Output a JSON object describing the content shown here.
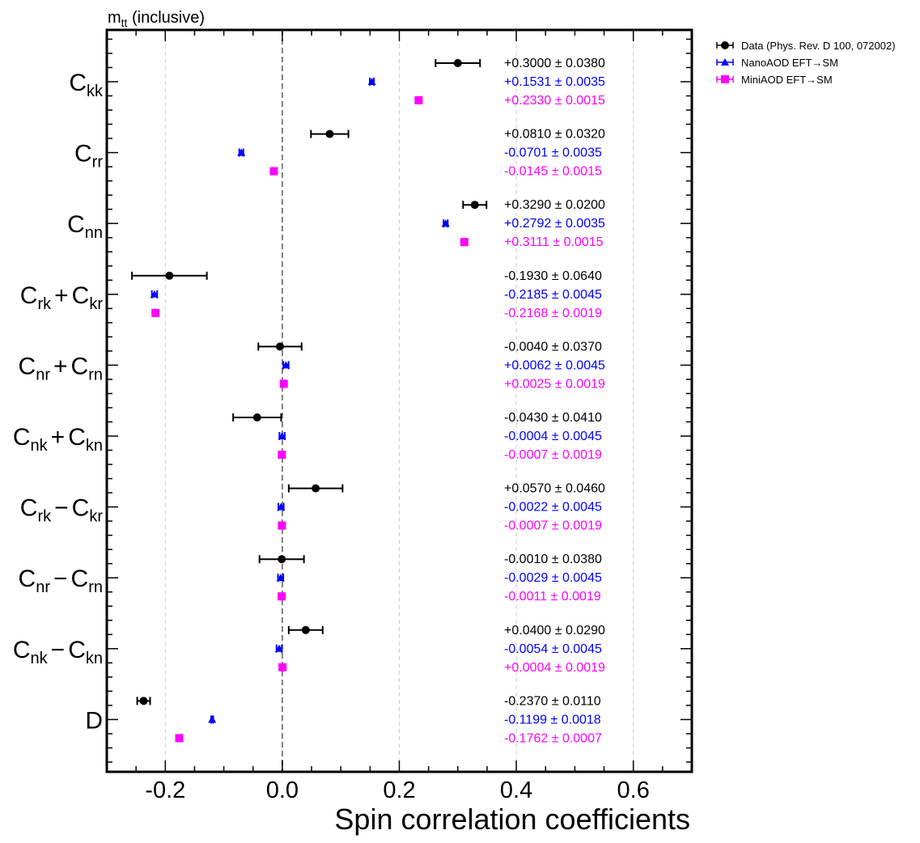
{
  "chart_data": {
    "type": "scatter",
    "title": "m_tt (inclusive)",
    "title_main": "m",
    "title_sub": "tt",
    "title_rest": " (inclusive)",
    "xlabel": "Spin correlation coefficients",
    "ylabel": "",
    "xlim": [
      -0.3,
      0.7
    ],
    "xticks": [
      -0.2,
      0.0,
      0.2,
      0.4,
      0.6
    ],
    "xtick_labels": [
      "-0.2",
      "0.0",
      "0.2",
      "0.4",
      "0.6"
    ],
    "grid": "vertical dashed at major x ticks",
    "reference_line_x": 0.0,
    "legend_position": "outside top-right",
    "categories": [
      {
        "key": "Ckk",
        "parts": [
          [
            "C",
            "kk"
          ]
        ],
        "ops": []
      },
      {
        "key": "Crr",
        "parts": [
          [
            "C",
            "rr"
          ]
        ],
        "ops": []
      },
      {
        "key": "Cnn",
        "parts": [
          [
            "C",
            "nn"
          ]
        ],
        "ops": []
      },
      {
        "key": "Crk+Ckr",
        "parts": [
          [
            "C",
            "rk"
          ],
          [
            "C",
            "kr"
          ]
        ],
        "ops": [
          "+"
        ]
      },
      {
        "key": "Cnr+Crn",
        "parts": [
          [
            "C",
            "nr"
          ],
          [
            "C",
            "rn"
          ]
        ],
        "ops": [
          "+"
        ]
      },
      {
        "key": "Cnk+Ckn",
        "parts": [
          [
            "C",
            "nk"
          ],
          [
            "C",
            "kn"
          ]
        ],
        "ops": [
          "+"
        ]
      },
      {
        "key": "Crk-Ckr",
        "parts": [
          [
            "C",
            "rk"
          ],
          [
            "C",
            "kr"
          ]
        ],
        "ops": [
          "−"
        ]
      },
      {
        "key": "Cnr-Crn",
        "parts": [
          [
            "C",
            "nr"
          ],
          [
            "C",
            "rn"
          ]
        ],
        "ops": [
          "−"
        ]
      },
      {
        "key": "Cnk-Ckn",
        "parts": [
          [
            "C",
            "nk"
          ],
          [
            "C",
            "kn"
          ]
        ],
        "ops": [
          "−"
        ]
      },
      {
        "key": "D",
        "parts": [
          [
            "D",
            ""
          ]
        ],
        "ops": []
      }
    ],
    "series": [
      {
        "name": "Data (Phys. Rev. D 100, 072002)",
        "color": "#000000",
        "marker": "circle",
        "values": [
          0.3,
          0.081,
          0.329,
          -0.193,
          -0.004,
          -0.043,
          0.057,
          -0.001,
          0.04,
          -0.237
        ],
        "errors": [
          0.038,
          0.032,
          0.02,
          0.064,
          0.037,
          0.041,
          0.046,
          0.038,
          0.029,
          0.011
        ],
        "labels": [
          "+0.3000 ± 0.0380",
          "+0.0810 ± 0.0320",
          "+0.3290 ± 0.0200",
          "-0.1930 ± 0.0640",
          "-0.0040 ± 0.0370",
          "-0.0430 ± 0.0410",
          "+0.0570 ± 0.0460",
          "-0.0010 ± 0.0380",
          "+0.0400 ± 0.0290",
          "-0.2370 ± 0.0110"
        ]
      },
      {
        "name": "NanoAOD EFT→SM",
        "color": "#0000ff",
        "marker": "triangle",
        "values": [
          0.1531,
          -0.0701,
          0.2792,
          -0.2185,
          0.0062,
          -0.0004,
          -0.0022,
          -0.0029,
          -0.0054,
          -0.1199
        ],
        "errors": [
          0.0035,
          0.0035,
          0.0035,
          0.0045,
          0.0045,
          0.0045,
          0.0045,
          0.0045,
          0.0045,
          0.0018
        ],
        "labels": [
          "+0.1531 ± 0.0035",
          "-0.0701 ± 0.0035",
          "+0.2792 ± 0.0035",
          "-0.2185 ± 0.0045",
          "+0.0062 ± 0.0045",
          "-0.0004 ± 0.0045",
          "-0.0022 ± 0.0045",
          "-0.0029 ± 0.0045",
          "-0.0054 ± 0.0045",
          "-0.1199 ± 0.0018"
        ]
      },
      {
        "name": "MiniAOD EFT→SM",
        "color": "#ff00ff",
        "marker": "square",
        "values": [
          0.233,
          -0.0145,
          0.3111,
          -0.2168,
          0.0025,
          -0.0007,
          -0.0007,
          -0.0011,
          0.0004,
          -0.1762
        ],
        "errors": [
          0.0015,
          0.0015,
          0.0015,
          0.0019,
          0.0019,
          0.0019,
          0.0019,
          0.0019,
          0.0019,
          0.0007
        ],
        "labels": [
          "+0.2330 ± 0.0015",
          "-0.0145 ± 0.0015",
          "+0.3111 ± 0.0015",
          "-0.2168 ± 0.0019",
          "+0.0025 ± 0.0019",
          "-0.0007 ± 0.0019",
          "-0.0007 ± 0.0019",
          "-0.0011 ± 0.0019",
          "+0.0004 ± 0.0019",
          "-0.1762 ± 0.0007"
        ]
      }
    ]
  }
}
